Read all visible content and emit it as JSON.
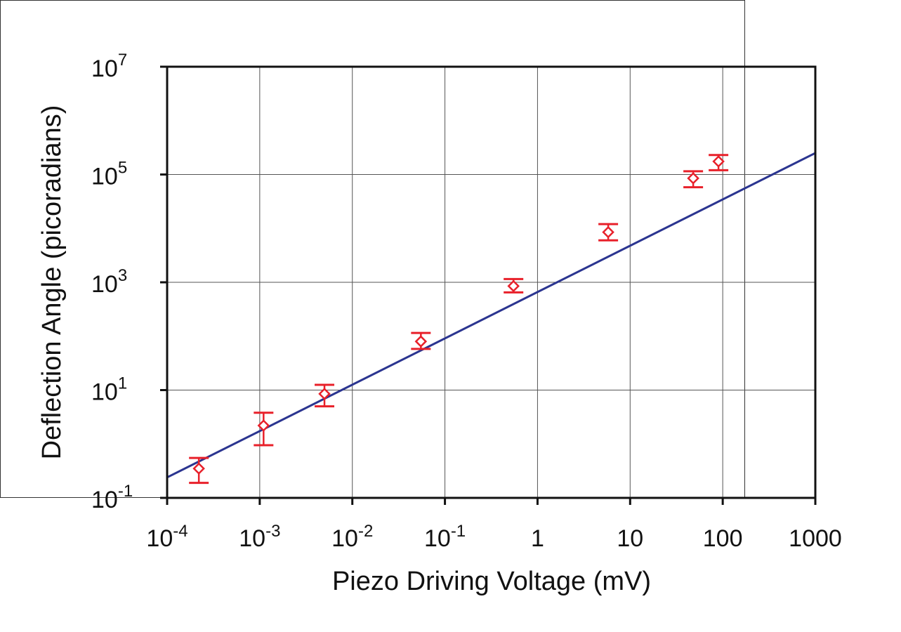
{
  "chart_data": {
    "type": "scatter",
    "xlabel": "Piezo Driving Voltage (mV)",
    "ylabel": "Deflection Angle (picoradians)",
    "x_scale": "log",
    "y_scale": "log",
    "xlim": [
      0.0001,
      1000
    ],
    "ylim": [
      0.1,
      10000000
    ],
    "grid": true,
    "x_ticks": [
      {
        "value": 0.0001,
        "base": "10",
        "exp": "-4"
      },
      {
        "value": 0.001,
        "base": "10",
        "exp": "-3"
      },
      {
        "value": 0.01,
        "base": "10",
        "exp": "-2"
      },
      {
        "value": 0.1,
        "base": "10",
        "exp": "-1"
      },
      {
        "value": 1,
        "base": "1",
        "exp": ""
      },
      {
        "value": 10,
        "base": "10",
        "exp": ""
      },
      {
        "value": 100,
        "base": "100",
        "exp": ""
      },
      {
        "value": 1000,
        "base": "1000",
        "exp": ""
      }
    ],
    "y_ticks": [
      {
        "value": 0.1,
        "base": "10",
        "exp": "-1"
      },
      {
        "value": 10,
        "base": "10",
        "exp": "1"
      },
      {
        "value": 1000,
        "base": "10",
        "exp": "3"
      },
      {
        "value": 100000,
        "base": "10",
        "exp": "5"
      },
      {
        "value": 10000000,
        "base": "10",
        "exp": "7"
      }
    ],
    "series": [
      {
        "points": [
          {
            "x": 0.00022,
            "y": 0.35,
            "y_low": 0.19,
            "y_high": 0.55
          },
          {
            "x": 0.0011,
            "y": 2.2,
            "y_low": 0.95,
            "y_high": 3.8
          },
          {
            "x": 0.005,
            "y": 8.5,
            "y_low": 5.0,
            "y_high": 12.5
          },
          {
            "x": 0.055,
            "y": 80,
            "y_low": 58,
            "y_high": 115
          },
          {
            "x": 0.55,
            "y": 850,
            "y_low": 650,
            "y_high": 1150
          },
          {
            "x": 5.8,
            "y": 8500,
            "y_low": 6000,
            "y_high": 12000
          },
          {
            "x": 48,
            "y": 85000,
            "y_low": 58000,
            "y_high": 115000
          },
          {
            "x": 90,
            "y": 175000,
            "y_low": 120000,
            "y_high": 230000
          }
        ]
      }
    ],
    "fit_line": {
      "x": [
        0.0001,
        1000
      ],
      "y": [
        0.24,
        250000
      ]
    },
    "colors": {
      "points": "#e8202a",
      "fit": "#2b3590",
      "axes": "#111111",
      "grid": "#555555"
    }
  }
}
